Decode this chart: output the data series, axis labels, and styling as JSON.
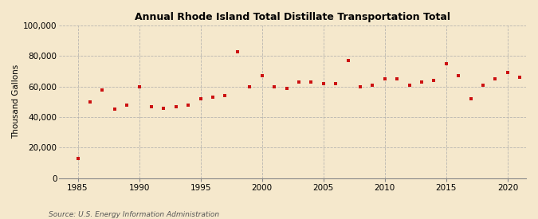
{
  "title": "Annual Rhode Island Total Distillate Transportation Total",
  "ylabel": "Thousand Gallons",
  "source": "Source: U.S. Energy Information Administration",
  "background_color": "#f5e8cc",
  "dot_color": "#cc1111",
  "grid_color": "#aaaaaa",
  "xlim": [
    1983.5,
    2021.5
  ],
  "ylim": [
    0,
    100000
  ],
  "yticks": [
    0,
    20000,
    40000,
    60000,
    80000,
    100000
  ],
  "xticks": [
    1985,
    1990,
    1995,
    2000,
    2005,
    2010,
    2015,
    2020
  ],
  "years": [
    1985,
    1986,
    1987,
    1988,
    1989,
    1990,
    1991,
    1992,
    1993,
    1994,
    1995,
    1996,
    1997,
    1998,
    1999,
    2000,
    2001,
    2002,
    2003,
    2004,
    2005,
    2006,
    2007,
    2008,
    2009,
    2010,
    2011,
    2012,
    2013,
    2014,
    2015,
    2016,
    2017,
    2018,
    2019,
    2020,
    2021
  ],
  "values": [
    13000,
    50000,
    58000,
    45000,
    48000,
    60000,
    47000,
    46000,
    47000,
    48000,
    52000,
    53000,
    54000,
    83000,
    60000,
    67000,
    60000,
    59000,
    63000,
    63000,
    62000,
    62000,
    77000,
    60000,
    61000,
    65000,
    65000,
    61000,
    63000,
    64000,
    75000,
    67000,
    52000,
    61000,
    65000,
    69000,
    66000
  ]
}
